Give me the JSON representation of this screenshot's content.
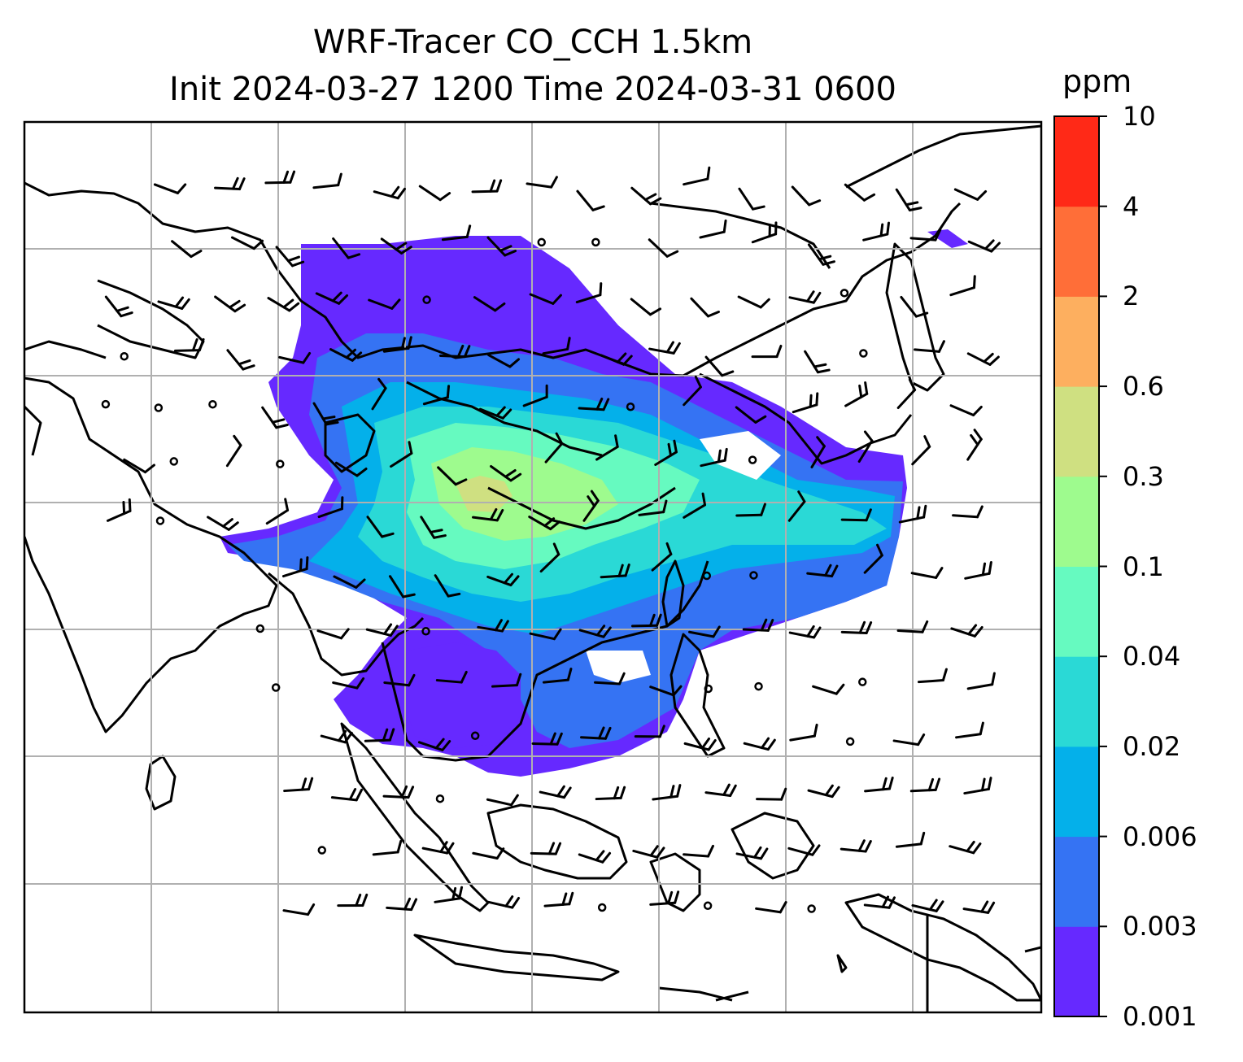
{
  "title": {
    "line1": "WRF-Tracer CO_CCH 1.5km",
    "line2": "Init 2024-03-27 1200 Time 2024-03-31 0600"
  },
  "colorbar": {
    "unit": "ppm",
    "ticks": [
      "0.001",
      "0.003",
      "0.006",
      "0.02",
      "0.04",
      "0.1",
      "0.3",
      "0.6",
      "2",
      "4",
      "10"
    ],
    "colors": [
      "#6629ff",
      "#3573f3",
      "#04b0ea",
      "#2ad9d6",
      "#66fac0",
      "#9efb8e",
      "#cfe081",
      "#fdaf5f",
      "#ff6e38",
      "#ff2917"
    ]
  },
  "map": {
    "grid": "on",
    "ocean_color": "#ffffff",
    "coast_color": "#000000",
    "wind_barb_color": "#000000"
  }
}
